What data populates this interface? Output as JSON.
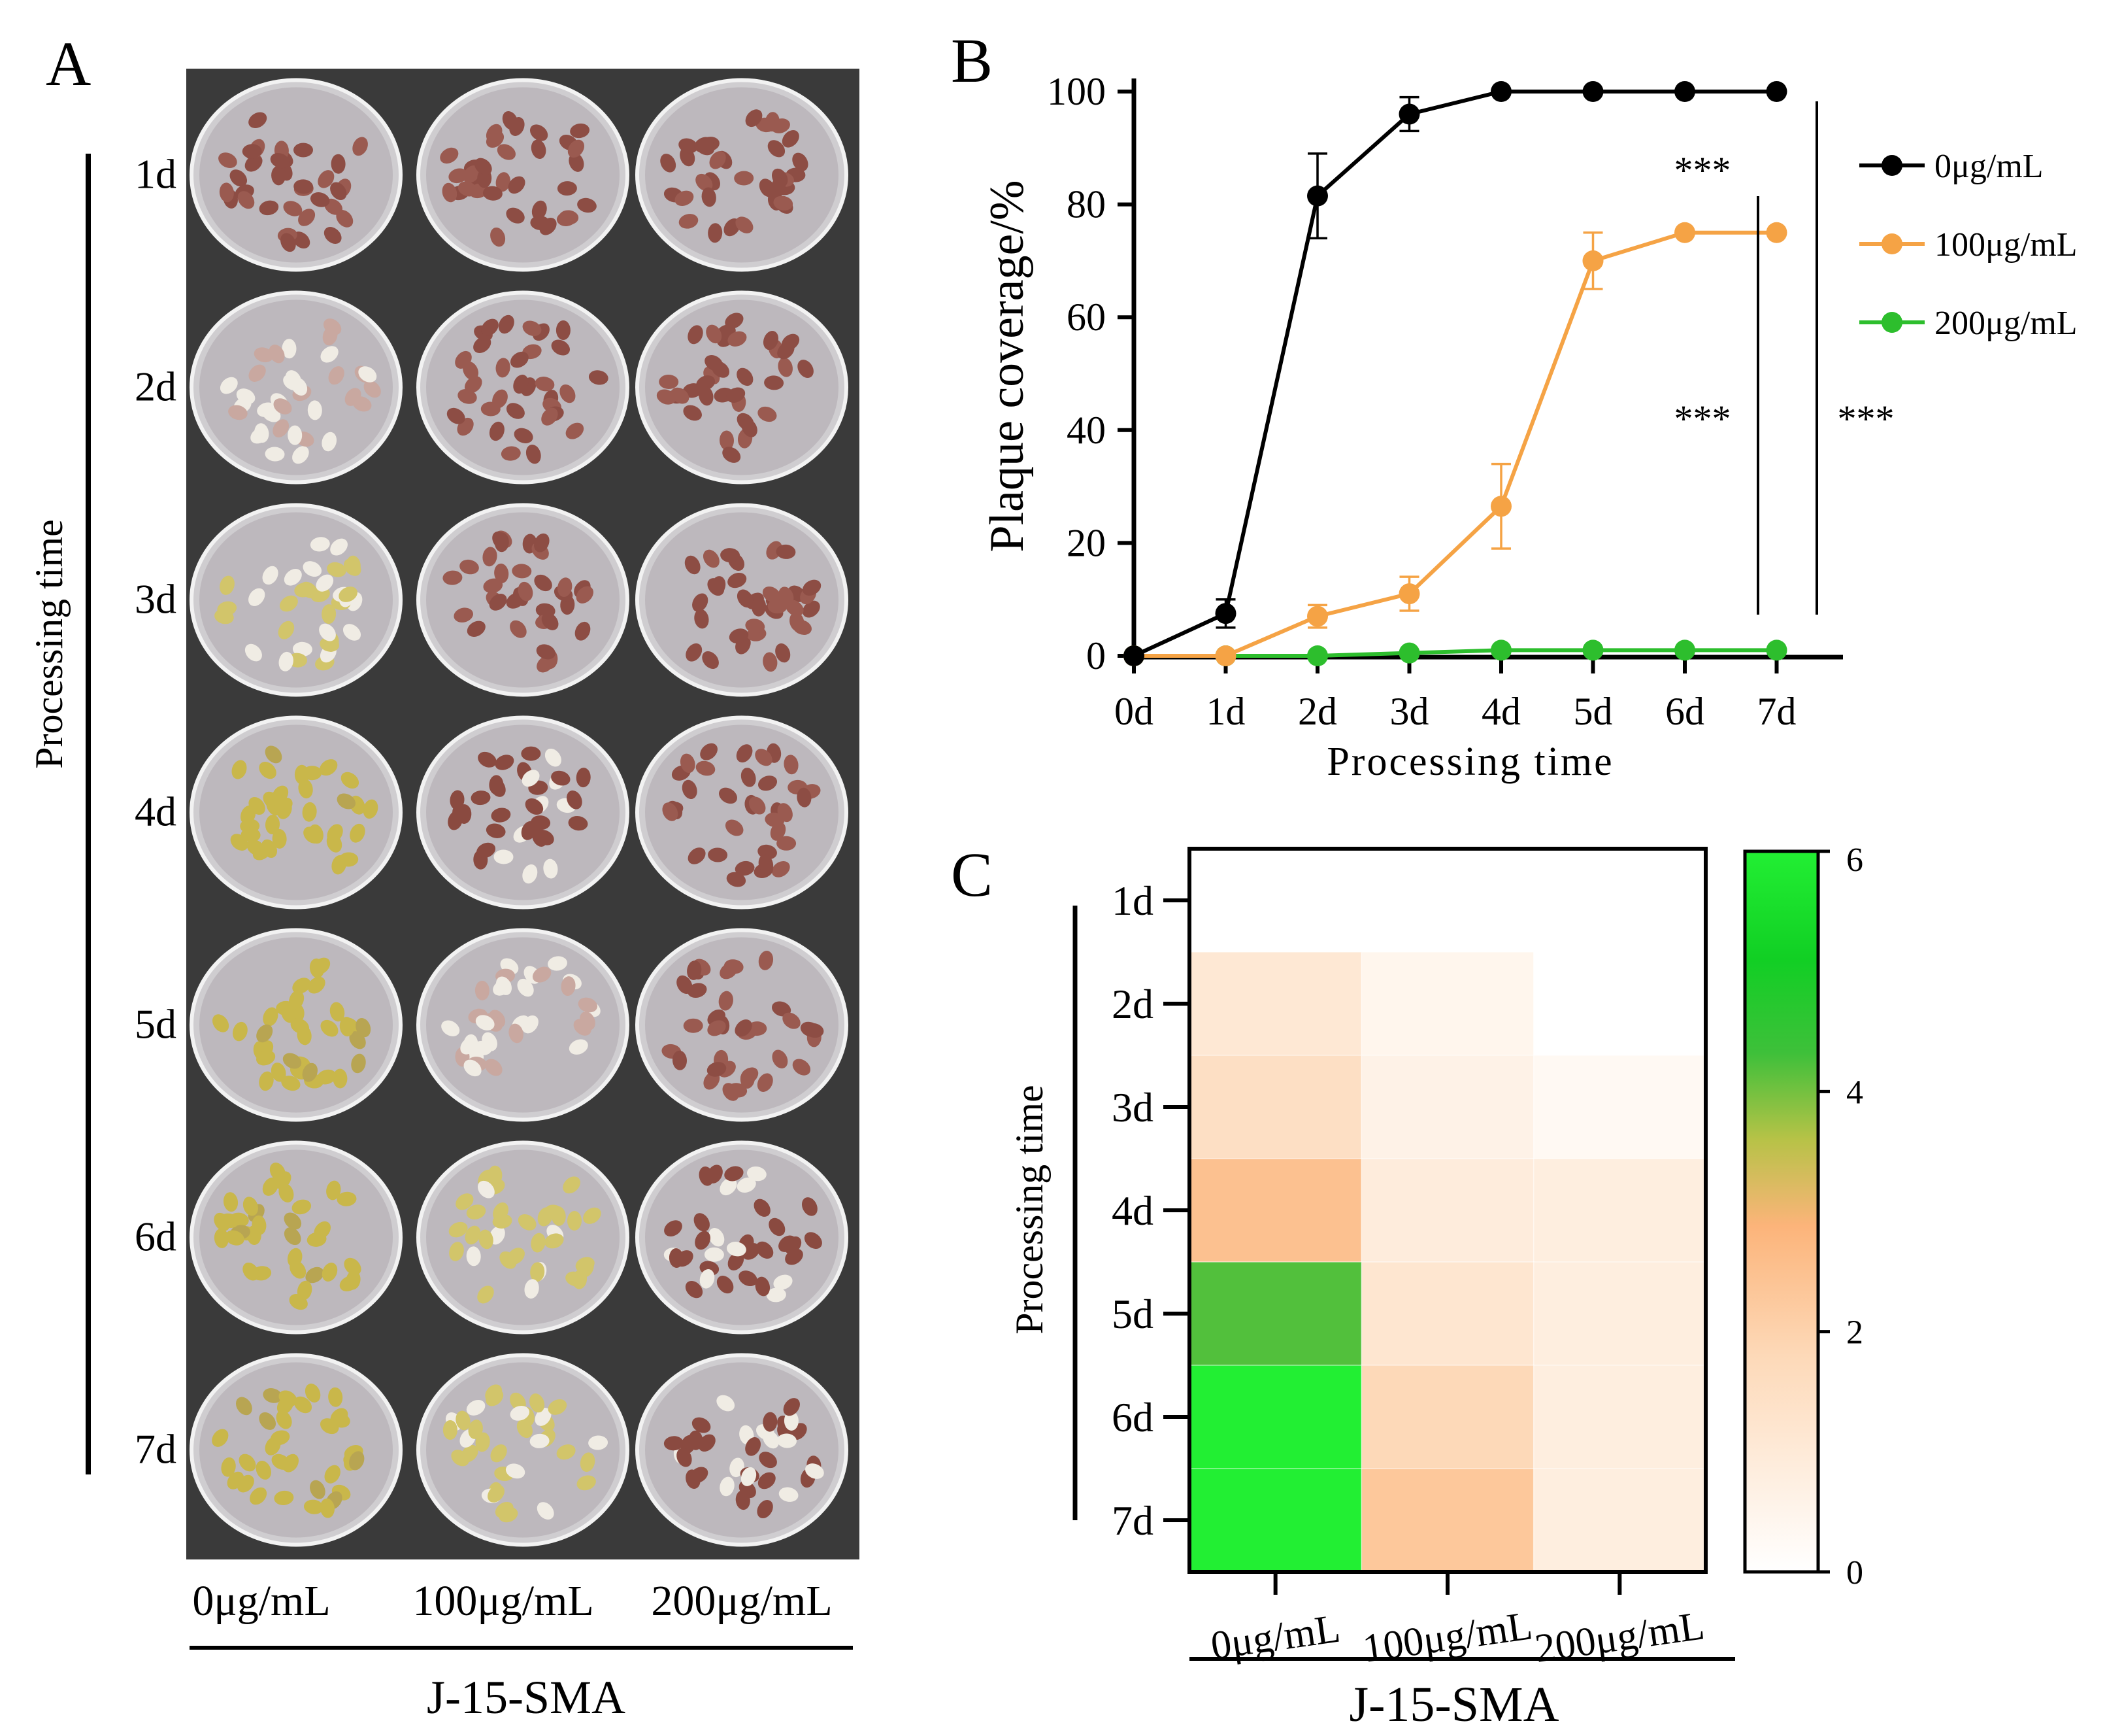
{
  "panel_a": {
    "label": "A",
    "ylabel": "Processing time",
    "row_labels": [
      "1d",
      "2d",
      "3d",
      "4d",
      "5d",
      "6d",
      "7d"
    ],
    "col_labels": [
      "0μg/mL",
      "100μg/mL",
      "200μg/mL"
    ],
    "group_label": "J-15-SMA",
    "dish_fungal_level": [
      [
        0,
        0,
        0
      ],
      [
        2,
        0,
        0
      ],
      [
        3,
        0,
        0
      ],
      [
        4,
        1,
        0
      ],
      [
        4,
        2,
        0
      ],
      [
        5,
        3,
        1
      ],
      [
        5,
        3,
        1
      ]
    ]
  },
  "colors": {
    "control": "#000000",
    "mid": "#F5A345",
    "high": "#2DBE2D",
    "dish_bg": "#3a3a3a",
    "seed": "#8a4a40",
    "mold_yellow": "#c9b74a",
    "mold_white": "#f0ece4"
  },
  "chart_data": [
    {
      "type": "line",
      "panel_label": "B",
      "title": "",
      "xlabel": "Processing time",
      "ylabel": "Plaque coverage/%",
      "categories": [
        "0d",
        "1d",
        "2d",
        "3d",
        "4d",
        "5d",
        "6d",
        "7d"
      ],
      "ylim": [
        0,
        100
      ],
      "yticks": [
        "0",
        "20",
        "40",
        "60",
        "80",
        "100"
      ],
      "series": [
        {
          "name": "0μg/mL",
          "color": "#000000",
          "values": [
            0,
            7.5,
            81.5,
            96,
            100,
            100,
            100,
            100
          ],
          "errors": [
            0,
            2.5,
            7.5,
            3,
            0,
            0,
            0,
            0
          ]
        },
        {
          "name": "100μg/mL",
          "color": "#F5A345",
          "values": [
            0,
            0,
            7,
            11,
            26.5,
            70,
            75,
            75
          ],
          "errors": [
            0,
            0,
            2,
            3,
            7.5,
            5,
            0,
            0
          ]
        },
        {
          "name": "200μg/mL",
          "color": "#2DBE2D",
          "values": [
            0,
            0,
            0,
            0.5,
            1,
            1,
            1,
            1
          ],
          "errors": [
            0,
            0,
            0,
            0,
            0,
            0,
            0,
            0
          ]
        }
      ],
      "annotations": [
        "***",
        "***",
        "***"
      ],
      "legend_position": "right"
    },
    {
      "type": "heatmap",
      "panel_label": "C",
      "ylabel": "Processing time",
      "rows": [
        "1d",
        "2d",
        "3d",
        "4d",
        "5d",
        "6d",
        "7d"
      ],
      "columns": [
        "0μg/mL",
        "100μg/mL",
        "200μg/mL"
      ],
      "group_label": "J-15-SMA",
      "values": [
        [
          0,
          0,
          0
        ],
        [
          1.1,
          0.45,
          0
        ],
        [
          1.5,
          0.6,
          0.3
        ],
        [
          2.5,
          0.9,
          0.8
        ],
        [
          4.2,
          1.2,
          0.8
        ],
        [
          6,
          1.8,
          0.8
        ],
        [
          6,
          2.3,
          0.8
        ]
      ],
      "colorbar": {
        "min": 0,
        "max": 6,
        "ticks": [
          "0",
          "2",
          "4",
          "6"
        ]
      }
    }
  ]
}
